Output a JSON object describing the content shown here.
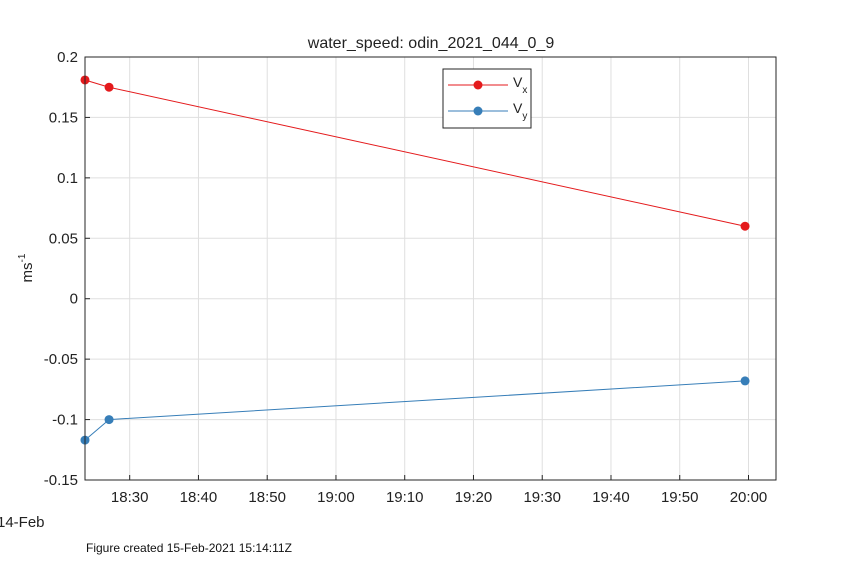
{
  "chart_data": {
    "type": "line",
    "title": "water_speed: odin_2021_044_0_9",
    "ylabel": "ms",
    "ylabel_superscript": "-1",
    "date_label": "14-Feb",
    "x_ticks": [
      "18:30",
      "18:40",
      "18:50",
      "19:00",
      "19:10",
      "19:20",
      "19:30",
      "19:40",
      "19:50",
      "20:00"
    ],
    "y_ticks": [
      "0.2",
      "0.15",
      "0.1",
      "0.05",
      "0",
      "-0.05",
      "-0.1",
      "-0.15"
    ],
    "xlim": [
      "18:23:30",
      "20:04:00"
    ],
    "ylim": [
      -0.15,
      0.2
    ],
    "grid": true,
    "legend_position": "top-center",
    "x": [
      "18:23:30",
      "18:27:00",
      "19:59:30"
    ],
    "series": [
      {
        "name": "V",
        "subscript": "x",
        "color": "#e41a1c",
        "values": [
          0.181,
          0.175,
          0.06
        ]
      },
      {
        "name": "V",
        "subscript": "y",
        "color": "#377eb8",
        "values": [
          -0.117,
          -0.1,
          -0.068
        ]
      }
    ]
  },
  "footer": "Figure created 15-Feb-2021 15:14:11Z"
}
